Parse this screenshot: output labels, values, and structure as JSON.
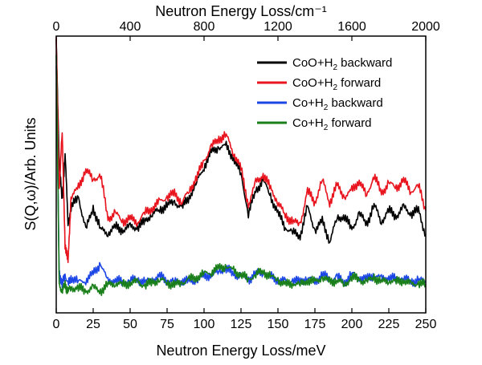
{
  "chart_data": {
    "type": "line",
    "title": "",
    "xlabel": "Neutron Energy Loss/meV",
    "ylabel": "S(Q,ω)/Arb. Units",
    "x2label": "Neutron Energy Loss/cm⁻¹",
    "xlim": [
      0,
      250
    ],
    "x2lim": [
      0,
      2000
    ],
    "ylim": [
      0,
      1
    ],
    "xticks": [
      0,
      25,
      50,
      75,
      100,
      125,
      150,
      175,
      200,
      225,
      250
    ],
    "xtick_labels": [
      "0",
      "25",
      "50",
      "75",
      "100",
      "125",
      "150",
      "175",
      "200",
      "225",
      "250"
    ],
    "x2ticks": [
      0,
      400,
      800,
      1200,
      1600,
      2000
    ],
    "x2tick_labels": [
      "0",
      "400",
      "800",
      "1200",
      "1600",
      "2000"
    ],
    "grid": false,
    "legend_position": "top-right",
    "series": [
      {
        "name": "CoO+H₂ backward",
        "label_main": "CoO+H",
        "label_sub": "2",
        "label_tail": " backward",
        "color": "#000000",
        "x": [
          0,
          2,
          4,
          6,
          8,
          10,
          15,
          20,
          25,
          30,
          35,
          40,
          45,
          50,
          55,
          60,
          65,
          70,
          75,
          80,
          85,
          90,
          95,
          100,
          105,
          110,
          115,
          120,
          125,
          130,
          135,
          140,
          145,
          150,
          155,
          160,
          165,
          170,
          175,
          180,
          185,
          190,
          195,
          200,
          205,
          210,
          215,
          220,
          225,
          230,
          235,
          240,
          245,
          250
        ],
        "y": [
          0.98,
          0.55,
          0.4,
          0.58,
          0.32,
          0.38,
          0.42,
          0.3,
          0.38,
          0.3,
          0.29,
          0.31,
          0.3,
          0.31,
          0.31,
          0.33,
          0.36,
          0.37,
          0.39,
          0.4,
          0.38,
          0.42,
          0.47,
          0.53,
          0.58,
          0.6,
          0.6,
          0.56,
          0.5,
          0.36,
          0.44,
          0.48,
          0.42,
          0.36,
          0.31,
          0.29,
          0.28,
          0.38,
          0.3,
          0.33,
          0.26,
          0.34,
          0.35,
          0.3,
          0.36,
          0.32,
          0.39,
          0.33,
          0.37,
          0.35,
          0.38,
          0.36,
          0.37,
          0.28
        ]
      },
      {
        "name": "CoO+H₂ forward",
        "label_main": "CoO+H",
        "label_sub": "2",
        "label_tail": " forward",
        "color": "#e8141e",
        "x": [
          0,
          2,
          4,
          6,
          8,
          10,
          15,
          20,
          25,
          30,
          35,
          40,
          45,
          50,
          55,
          60,
          65,
          70,
          75,
          80,
          85,
          90,
          95,
          100,
          105,
          110,
          115,
          120,
          125,
          130,
          135,
          140,
          145,
          150,
          155,
          160,
          165,
          170,
          175,
          180,
          185,
          190,
          195,
          200,
          205,
          210,
          215,
          220,
          225,
          230,
          235,
          240,
          245,
          250
        ],
        "y": [
          0.98,
          0.45,
          0.65,
          0.25,
          0.18,
          0.42,
          0.45,
          0.52,
          0.48,
          0.5,
          0.34,
          0.36,
          0.33,
          0.34,
          0.33,
          0.36,
          0.38,
          0.4,
          0.42,
          0.43,
          0.4,
          0.44,
          0.49,
          0.55,
          0.6,
          0.63,
          0.64,
          0.58,
          0.52,
          0.39,
          0.47,
          0.5,
          0.45,
          0.4,
          0.35,
          0.33,
          0.32,
          0.44,
          0.4,
          0.48,
          0.4,
          0.46,
          0.42,
          0.44,
          0.48,
          0.42,
          0.5,
          0.43,
          0.47,
          0.45,
          0.48,
          0.44,
          0.46,
          0.37
        ]
      },
      {
        "name": "Co+H₂ backward",
        "label_main": "Co+H",
        "label_sub": "2",
        "label_tail": " backward",
        "color": "#1c46e6",
        "x": [
          0,
          2,
          4,
          6,
          8,
          10,
          15,
          20,
          25,
          30,
          35,
          40,
          45,
          50,
          55,
          60,
          65,
          70,
          75,
          80,
          85,
          90,
          95,
          100,
          105,
          110,
          115,
          120,
          125,
          130,
          135,
          140,
          145,
          150,
          155,
          160,
          165,
          170,
          175,
          180,
          185,
          190,
          195,
          200,
          205,
          210,
          215,
          220,
          225,
          230,
          235,
          240,
          245,
          250
        ],
        "y": [
          0.9,
          0.15,
          0.1,
          0.14,
          0.1,
          0.13,
          0.11,
          0.12,
          0.14,
          0.18,
          0.11,
          0.12,
          0.11,
          0.12,
          0.12,
          0.11,
          0.12,
          0.13,
          0.12,
          0.11,
          0.12,
          0.11,
          0.12,
          0.13,
          0.14,
          0.15,
          0.16,
          0.14,
          0.13,
          0.12,
          0.14,
          0.15,
          0.13,
          0.12,
          0.11,
          0.12,
          0.11,
          0.13,
          0.11,
          0.14,
          0.12,
          0.13,
          0.11,
          0.14,
          0.13,
          0.12,
          0.14,
          0.12,
          0.13,
          0.12,
          0.13,
          0.11,
          0.12,
          0.11
        ]
      },
      {
        "name": "Co+H₂ forward",
        "label_main": "Co+H",
        "label_sub": "2",
        "label_tail": " forward",
        "color": "#1a7f1a",
        "x": [
          0,
          2,
          4,
          6,
          8,
          10,
          15,
          20,
          25,
          30,
          35,
          40,
          45,
          50,
          55,
          60,
          65,
          70,
          75,
          80,
          85,
          90,
          95,
          100,
          105,
          110,
          115,
          120,
          125,
          130,
          135,
          140,
          145,
          150,
          155,
          160,
          165,
          170,
          175,
          180,
          185,
          190,
          195,
          200,
          205,
          210,
          215,
          220,
          225,
          230,
          235,
          240,
          245,
          250
        ],
        "y": [
          0.95,
          0.1,
          0.08,
          0.1,
          0.08,
          0.09,
          0.09,
          0.08,
          0.09,
          0.08,
          0.1,
          0.11,
          0.1,
          0.11,
          0.11,
          0.1,
          0.11,
          0.12,
          0.11,
          0.1,
          0.11,
          0.12,
          0.13,
          0.14,
          0.15,
          0.16,
          0.17,
          0.15,
          0.14,
          0.12,
          0.14,
          0.15,
          0.13,
          0.12,
          0.1,
          0.11,
          0.1,
          0.12,
          0.11,
          0.13,
          0.11,
          0.12,
          0.1,
          0.13,
          0.12,
          0.11,
          0.13,
          0.11,
          0.12,
          0.11,
          0.12,
          0.1,
          0.11,
          0.1
        ]
      }
    ]
  }
}
